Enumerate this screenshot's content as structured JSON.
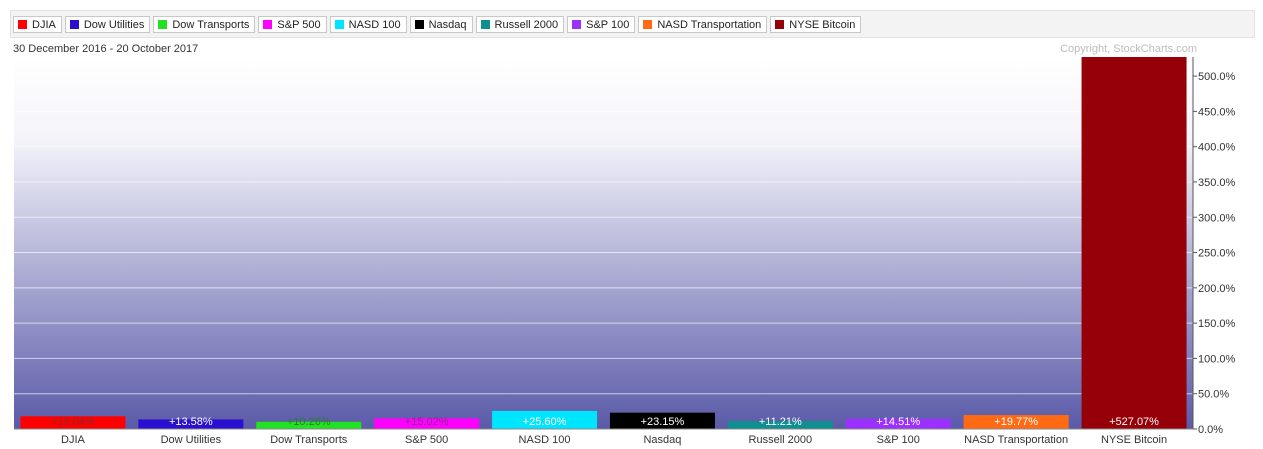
{
  "legend": [
    {
      "label": "DJIA",
      "color": "#ff0000"
    },
    {
      "label": "Dow Utilities",
      "color": "#2a0fd0"
    },
    {
      "label": "Dow Transports",
      "color": "#22e022"
    },
    {
      "label": "S&P 500",
      "color": "#ff00ff"
    },
    {
      "label": "NASD 100",
      "color": "#00e5ff"
    },
    {
      "label": "Nasdaq",
      "color": "#000000"
    },
    {
      "label": "Russell 2000",
      "color": "#0f8f8f"
    },
    {
      "label": "S&P 100",
      "color": "#9b30ff"
    },
    {
      "label": "NASD Transportation",
      "color": "#ff6a13"
    },
    {
      "label": "NYSE Bitcoin",
      "color": "#960008"
    }
  ],
  "date_range": "30 December 2016 - 20 October 2017",
  "copyright": "Copyright, StockCharts.com",
  "chart_data": {
    "type": "bar",
    "categories": [
      "DJIA",
      "Dow Utilities",
      "Dow Transports",
      "S&P 500",
      "NASD 100",
      "Nasdaq",
      "Russell 2000",
      "S&P 100",
      "NASD Transportation",
      "NYSE Bitcoin"
    ],
    "values": [
      18.04,
      13.58,
      10.26,
      15.02,
      25.6,
      23.15,
      11.21,
      14.51,
      19.77,
      527.07
    ],
    "value_labels": [
      "+18.04%",
      "+13.58%",
      "+10.26%",
      "+15.02%",
      "+25.60%",
      "+23.15%",
      "+11.21%",
      "+14.51%",
      "+19.77%",
      "+527.07%"
    ],
    "colors": [
      "#ff0000",
      "#2a0fd0",
      "#22e022",
      "#ff00ff",
      "#00e5ff",
      "#000000",
      "#0f8f8f",
      "#9b30ff",
      "#ff6a13",
      "#960008"
    ],
    "y_ticks": [
      0,
      50,
      100,
      150,
      200,
      250,
      300,
      350,
      400,
      450,
      500
    ],
    "y_tick_labels": [
      "0.0%",
      "50.0%",
      "100.0%",
      "150.0%",
      "200.0%",
      "250.0%",
      "300.0%",
      "350.0%",
      "400.0%",
      "450.0%",
      "500.0%"
    ],
    "ylim": [
      0,
      527.07
    ],
    "grid": true,
    "y_axis_side": "right",
    "background": {
      "top": "#ffffff",
      "bottom": "#5a5aa8"
    }
  }
}
